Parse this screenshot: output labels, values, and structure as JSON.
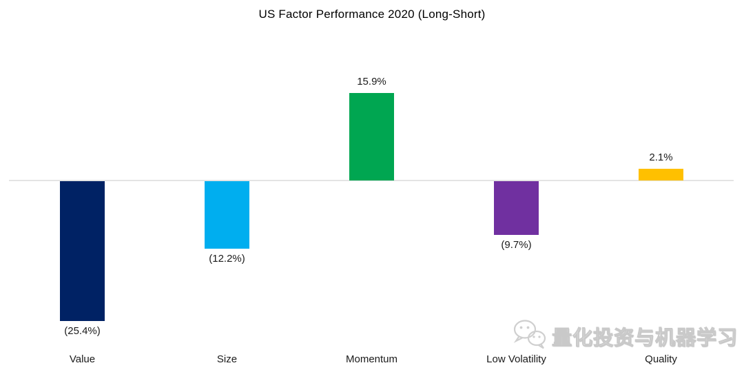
{
  "title": "US Factor Performance 2020 (Long-Short)",
  "watermark": {
    "icon": "wechat-icon",
    "text": "量化投资与机器学习"
  },
  "chart_data": {
    "type": "bar",
    "title": "US Factor Performance 2020 (Long-Short)",
    "categories": [
      "Value",
      "Size",
      "Momentum",
      "Low Volatility",
      "Quality"
    ],
    "values": [
      -25.4,
      -12.2,
      15.9,
      -9.7,
      2.1
    ],
    "value_labels": [
      "(25.4%)",
      "(12.2%)",
      "15.9%",
      "(9.7%)",
      "2.1%"
    ],
    "colors": [
      "#002264",
      "#00AEEF",
      "#00A651",
      "#7030A0",
      "#FFC000"
    ],
    "xlabel": "",
    "ylabel": "",
    "ylim": [
      -30,
      20
    ],
    "baseline": 0,
    "grid": false,
    "legend": "none",
    "value_label_format": "negative values shown in parentheses, labels placed outside bar ends",
    "zero_axis_color": "#e4e4e4"
  }
}
